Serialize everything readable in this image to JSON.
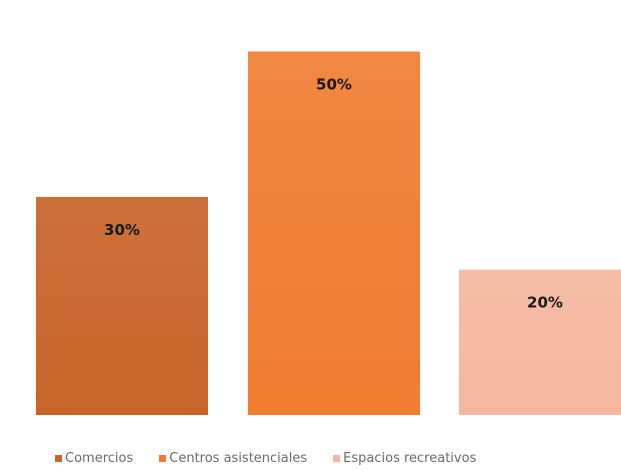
{
  "chart_data": {
    "type": "bar",
    "title": "",
    "xlabel": "",
    "ylabel": "",
    "ylim": [
      0,
      60
    ],
    "grid": false,
    "legend_position": "bottom",
    "series": [
      {
        "name": "Comercios",
        "value": 30,
        "label": "30%",
        "color": "#c8642a"
      },
      {
        "name": "Centros asistenciales",
        "value": 50,
        "label": "50%",
        "color": "#ef7d32"
      },
      {
        "name": "Espacios recreativos",
        "value": 20,
        "label": "20%",
        "color": "#f4b7a0"
      }
    ]
  }
}
